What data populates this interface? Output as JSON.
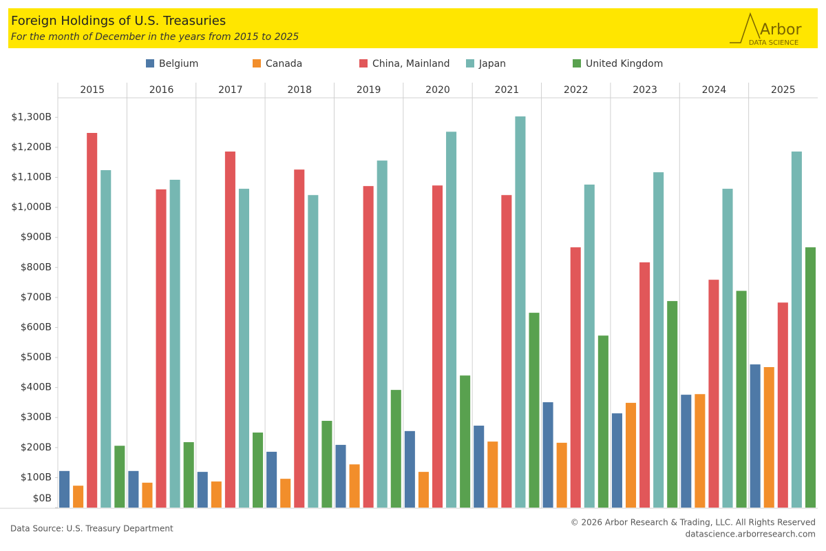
{
  "chart_data": {
    "type": "bar",
    "title": "Foreign Holdings of U.S. Treasuries",
    "subtitle": "For the month of December in the years from 2015 to 2025",
    "logo": {
      "name": "Arbor",
      "tagline": "DATA SCIENCE"
    },
    "source": "Data Source: U.S. Treasury Department",
    "copyright": "© 2026 Arbor Research & Trading, LLC. All Rights Reserved",
    "website": "datascience.arborresearch.com",
    "categories": [
      "2015",
      "2016",
      "2017",
      "2018",
      "2019",
      "2020",
      "2021",
      "2022",
      "2023",
      "2024",
      "2025"
    ],
    "series": [
      {
        "name": "Belgium",
        "color": "#4e79a7",
        "values": [
          122,
          122,
          119,
          186,
          209,
          255,
          273,
          351,
          314,
          376,
          477
        ]
      },
      {
        "name": "Canada",
        "color": "#f28e2b",
        "values": [
          73,
          83,
          87,
          96,
          144,
          119,
          220,
          216,
          349,
          378,
          468
        ]
      },
      {
        "name": "China, Mainland",
        "color": "#e15759",
        "values": [
          1248,
          1060,
          1186,
          1126,
          1071,
          1073,
          1041,
          867,
          817,
          759,
          683
        ]
      },
      {
        "name": "Japan",
        "color": "#76b7b2",
        "values": [
          1124,
          1092,
          1062,
          1041,
          1156,
          1252,
          1303,
          1076,
          1117,
          1062,
          1186
        ]
      },
      {
        "name": "United Kingdom",
        "color": "#59a14f",
        "values": [
          206,
          218,
          250,
          289,
          392,
          440,
          649,
          573,
          688,
          722,
          867
        ]
      }
    ],
    "ylim": [
      0,
      1365
    ],
    "yticks": [
      {
        "value": 0,
        "label": "$0B"
      },
      {
        "value": 100,
        "label": "$100B"
      },
      {
        "value": 200,
        "label": "$200B"
      },
      {
        "value": 300,
        "label": "$300B"
      },
      {
        "value": 400,
        "label": "$400B"
      },
      {
        "value": 500,
        "label": "$500B"
      },
      {
        "value": 600,
        "label": "$600B"
      },
      {
        "value": 700,
        "label": "$700B"
      },
      {
        "value": 800,
        "label": "$800B"
      },
      {
        "value": 900,
        "label": "$900B"
      },
      {
        "value": 1000,
        "label": "$1,000B"
      },
      {
        "value": 1100,
        "label": "$1,100B"
      },
      {
        "value": 1200,
        "label": "$1,200B"
      },
      {
        "value": 1300,
        "label": "$1,300B"
      }
    ],
    "grid": false,
    "legend": "top"
  }
}
